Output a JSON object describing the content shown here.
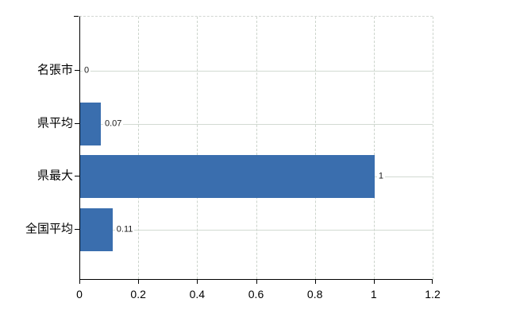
{
  "chart_data": {
    "type": "bar",
    "orientation": "horizontal",
    "categories": [
      "名張市",
      "県平均",
      "県最大",
      "全国平均"
    ],
    "values": [
      0,
      0.07,
      1,
      0.11
    ],
    "value_labels": [
      "0",
      "0.07",
      "1",
      "0.11"
    ],
    "x_tick_values": [
      0,
      0.2,
      0.4,
      0.6,
      0.8,
      1,
      1.2
    ],
    "x_tick_labels": [
      "0",
      "0.2",
      "0.4",
      "0.6",
      "0.8",
      "1",
      "1.2"
    ],
    "xlim": [
      0,
      1.2
    ],
    "grid": true,
    "legend": false,
    "bar_color": "#3a6eae",
    "colors": {
      "axis": "#000000",
      "horizontal_gridline": "#d2dad2",
      "vertical_gridline": "#ccd4cc",
      "background": "#ffffff",
      "text": "#000000"
    }
  }
}
